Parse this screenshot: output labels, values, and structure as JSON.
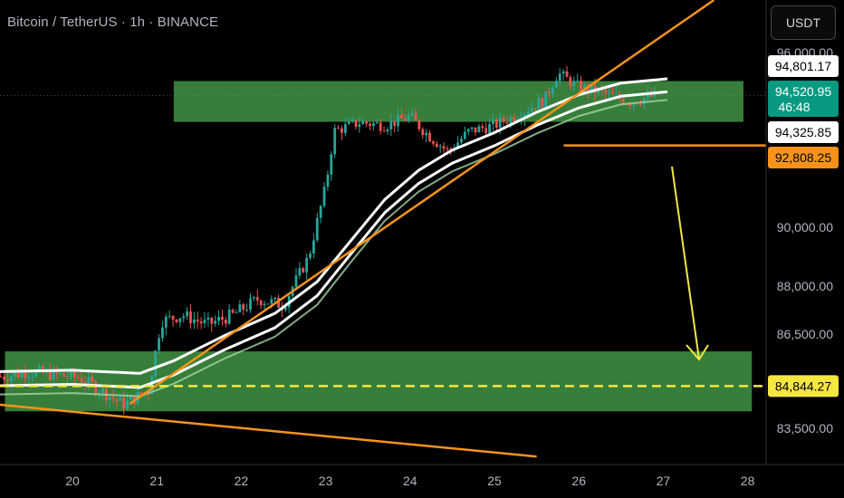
{
  "header": {
    "title": "Bitcoin / TetherUS · 1h · BINANCE",
    "currency_button": "USDT"
  },
  "colors": {
    "background": "#000000",
    "zone_fill": "#4CAF50",
    "trendline": "#F7931A",
    "ma": "#FFFFFF",
    "ma_light": "#A5D6A7",
    "up_candle": "#26A69A",
    "down_candle": "#EF5350",
    "projection_arrow": "#F5E642",
    "dashed_level": "#F5E642"
  },
  "price_tags": [
    {
      "label": "94,801.17",
      "bg": "#FFFFFF",
      "fg": "#000000",
      "price": 94801.17
    },
    {
      "label": "94,520.95",
      "sub": "46:48",
      "bg": "#089981",
      "fg": "#FFFFFF",
      "price": 94520.95
    },
    {
      "label": "94,325.85",
      "bg": "#FFFFFF",
      "fg": "#000000",
      "price": 94325.85
    },
    {
      "label": "92,808.25",
      "bg": "#F7931A",
      "fg": "#000000",
      "price": 92808.25
    },
    {
      "label": "84,844.27",
      "bg": "#F5E642",
      "fg": "#000000",
      "price": 84844.27
    }
  ],
  "chart_data": {
    "type": "candlestick",
    "title": "Bitcoin / TetherUS · 1h · BINANCE",
    "y_ticks": [
      {
        "label": "96,000.00",
        "value": 96000
      },
      {
        "label": "90,000.00",
        "value": 90000
      },
      {
        "label": "88,000.00",
        "value": 88000
      },
      {
        "label": "86,500.00",
        "value": 86500
      },
      {
        "label": "83,500.00",
        "value": 83500
      }
    ],
    "x_ticks": [
      {
        "label": "20",
        "day": 20
      },
      {
        "label": "21",
        "day": 21
      },
      {
        "label": "22",
        "day": 22
      },
      {
        "label": "23",
        "day": 23
      },
      {
        "label": "24",
        "day": 24
      },
      {
        "label": "25",
        "day": 25
      },
      {
        "label": "26",
        "day": 26
      },
      {
        "label": "27",
        "day": 27
      },
      {
        "label": "28",
        "day": 28
      }
    ],
    "approx_closes": [
      [
        19.2,
        85150
      ],
      [
        19.5,
        85300
      ],
      [
        19.8,
        85200
      ],
      [
        20.1,
        85100
      ],
      [
        20.4,
        84600
      ],
      [
        20.6,
        84250
      ],
      [
        20.9,
        84700
      ],
      [
        21.05,
        86900
      ],
      [
        21.3,
        87100
      ],
      [
        21.6,
        86800
      ],
      [
        21.9,
        87100
      ],
      [
        22.2,
        87600
      ],
      [
        22.5,
        87400
      ],
      [
        22.8,
        89000
      ],
      [
        23.0,
        91400
      ],
      [
        23.1,
        93300
      ],
      [
        23.4,
        93600
      ],
      [
        23.7,
        93500
      ],
      [
        24.0,
        93800
      ],
      [
        24.2,
        93200
      ],
      [
        24.45,
        92600
      ],
      [
        24.7,
        93300
      ],
      [
        25.0,
        93500
      ],
      [
        25.3,
        93900
      ],
      [
        25.6,
        94400
      ],
      [
        25.75,
        95300
      ],
      [
        26.0,
        94800
      ],
      [
        26.3,
        94600
      ],
      [
        26.6,
        94300
      ],
      [
        26.9,
        94521
      ]
    ],
    "zones": [
      {
        "name": "upper-supply-zone",
        "from_day": 21.2,
        "to_day": 27.95,
        "low": 93620,
        "high": 95020
      },
      {
        "name": "lower-demand-zone",
        "from_day": 19.2,
        "to_day": 28.05,
        "low": 84040,
        "high": 85950
      }
    ],
    "levels": [
      {
        "name": "dashed-level",
        "price": 84844.27
      },
      {
        "name": "support-line",
        "price": 92808.25
      }
    ]
  }
}
